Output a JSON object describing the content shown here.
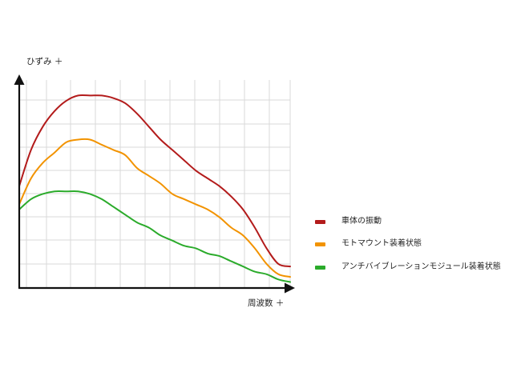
{
  "chart_data": {
    "type": "line",
    "ylabel": "ひずみ ＋",
    "xlabel": "周波数 ＋",
    "grid": true,
    "legend_position": "right",
    "x": [
      0,
      0.5,
      1,
      1.5,
      2,
      2.5,
      3,
      3.5,
      4,
      4.5,
      5,
      5.5,
      6,
      6.5,
      7,
      7.5,
      8,
      8.5,
      9,
      9.5,
      10,
      10.5,
      11,
      11.5
    ],
    "xlim": [
      0,
      11.5
    ],
    "ylim": [
      0,
      8
    ],
    "series": [
      {
        "name": "車体の振動",
        "color": "#b31b1b",
        "values": [
          3.9,
          5.3,
          6.2,
          6.8,
          7.2,
          7.4,
          7.4,
          7.4,
          7.3,
          7.1,
          6.7,
          6.2,
          5.7,
          5.3,
          4.9,
          4.5,
          4.2,
          3.9,
          3.5,
          3.0,
          2.3,
          1.5,
          0.9,
          0.8
        ]
      },
      {
        "name": "モトマウント装着状態",
        "color": "#f29300",
        "values": [
          3.2,
          4.2,
          4.8,
          5.2,
          5.6,
          5.7,
          5.7,
          5.5,
          5.3,
          5.1,
          4.6,
          4.3,
          4.0,
          3.6,
          3.4,
          3.2,
          3.0,
          2.7,
          2.3,
          2.0,
          1.5,
          0.9,
          0.5,
          0.4
        ]
      },
      {
        "name": "アンチバイブレーションモジュール装着状態",
        "color": "#2bab2b",
        "values": [
          3.0,
          3.4,
          3.6,
          3.7,
          3.7,
          3.7,
          3.6,
          3.4,
          3.1,
          2.8,
          2.5,
          2.3,
          2.0,
          1.8,
          1.6,
          1.5,
          1.3,
          1.2,
          1.0,
          0.8,
          0.6,
          0.5,
          0.3,
          0.2
        ]
      }
    ]
  }
}
